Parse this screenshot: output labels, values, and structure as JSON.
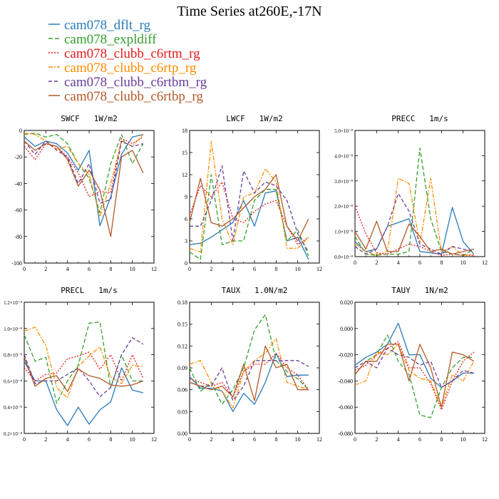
{
  "title": "Time Series at260E,-17N",
  "legend": [
    {
      "name": "cam078_dflt_rg",
      "color": "#2a7ab8",
      "dash": ""
    },
    {
      "name": "cam078_expldiff",
      "color": "#33a02c",
      "dash": "6 3"
    },
    {
      "name": "cam078_clubb_c6rtm_rg",
      "color": "#e31a1c",
      "dash": "2 2"
    },
    {
      "name": "cam078_clubb_c6rtp_rg",
      "color": "#ff8c00",
      "dash": "6 2 2 2"
    },
    {
      "name": "cam078_clubb_c6rtbm_rg",
      "color": "#6a3d9a",
      "dash": "5 3"
    },
    {
      "name": "cam078_clubb_c6rtbp_rg",
      "color": "#b15928",
      "dash": ""
    }
  ],
  "chart_data": [
    {
      "type": "line",
      "title": "SWCF   1W/m2",
      "x": [
        0,
        1,
        2,
        3,
        4,
        5,
        6,
        7,
        8,
        9,
        10,
        11
      ],
      "xlim": [
        0,
        12
      ],
      "ylim": [
        -100,
        0
      ],
      "xticks": [
        0,
        2,
        4,
        6,
        8,
        10,
        12
      ],
      "yticks": [
        -100,
        -80,
        -60,
        -40,
        -20,
        0
      ],
      "yticklabels": [
        "-100",
        "-80",
        "-60",
        "-40",
        "-20",
        "0"
      ],
      "series": [
        {
          "name": "cam078_dflt_rg",
          "values": [
            -5,
            -12,
            -8,
            -10,
            -17,
            -30,
            -15,
            -72,
            -50,
            -18,
            -5,
            -3
          ]
        },
        {
          "name": "cam078_expldiff",
          "values": [
            -3,
            -2,
            -5,
            -3,
            -10,
            -25,
            -36,
            -62,
            -25,
            -3,
            -25,
            -10
          ]
        },
        {
          "name": "cam078_clubb_c6rtm_rg",
          "values": [
            -12,
            -22,
            -10,
            -12,
            -20,
            -32,
            -50,
            -46,
            -47,
            -6,
            -10,
            -5
          ]
        },
        {
          "name": "cam078_clubb_c6rtp_rg",
          "values": [
            -2,
            -3,
            -8,
            -14,
            -12,
            -25,
            -33,
            -65,
            -40,
            -8,
            -12,
            -3
          ]
        },
        {
          "name": "cam078_clubb_c6rtbm_rg",
          "values": [
            -8,
            -18,
            -8,
            -15,
            -20,
            -40,
            -25,
            -55,
            -52,
            -8,
            -12,
            -10
          ]
        },
        {
          "name": "cam078_clubb_c6rtbp_rg",
          "values": [
            -8,
            -15,
            -10,
            -12,
            -22,
            -42,
            -30,
            -45,
            -80,
            -20,
            -15,
            -32
          ]
        }
      ]
    },
    {
      "type": "line",
      "title": "LWCF   1W/m2",
      "x": [
        0,
        1,
        2,
        3,
        4,
        5,
        6,
        7,
        8,
        9,
        10,
        11
      ],
      "xlim": [
        0,
        12
      ],
      "ylim": [
        0,
        18
      ],
      "xticks": [
        0,
        2,
        4,
        6,
        8,
        10,
        12
      ],
      "yticks": [
        0,
        3,
        6,
        9,
        12,
        15,
        18
      ],
      "yticklabels": [
        "0",
        "3",
        "6",
        "9",
        "12",
        "15",
        "18"
      ],
      "series": [
        {
          "name": "cam078_dflt_rg",
          "values": [
            2.5,
            2.7,
            3.5,
            4.5,
            5.5,
            8.5,
            5,
            9.5,
            9.8,
            3,
            3.5,
            0.5
          ]
        },
        {
          "name": "cam078_expldiff",
          "values": [
            1.5,
            0.5,
            12,
            2.5,
            3,
            3,
            8.5,
            10,
            10,
            3,
            4.5,
            1
          ]
        },
        {
          "name": "cam078_clubb_c6rtm_rg",
          "values": [
            6.5,
            10.5,
            9,
            11,
            6,
            5.5,
            7,
            8,
            8.5,
            5,
            2.5,
            3.5
          ]
        },
        {
          "name": "cam078_clubb_c6rtp_rg",
          "values": [
            2,
            1.5,
            16.5,
            6,
            2.5,
            9,
            9.5,
            12.8,
            11,
            2,
            2,
            3.5
          ]
        },
        {
          "name": "cam078_clubb_c6rtbm_rg",
          "values": [
            5,
            5,
            8.5,
            13.2,
            3,
            12.5,
            9.5,
            11,
            10.5,
            8.5,
            4,
            1.5
          ]
        },
        {
          "name": "cam078_clubb_c6rtbp_rg",
          "values": [
            5.5,
            11.5,
            5.5,
            5,
            6,
            7.5,
            9,
            10,
            12,
            5,
            3,
            6
          ]
        }
      ]
    },
    {
      "type": "line",
      "title": "PRECC   1m/s",
      "x": [
        0,
        1,
        2,
        3,
        4,
        5,
        6,
        7,
        8,
        9,
        10,
        11
      ],
      "xlim": [
        0,
        12
      ],
      "ylim": [
        0,
        5e-08
      ],
      "xticks": [
        0,
        2,
        4,
        6,
        8,
        10,
        12
      ],
      "yticks": [
        0,
        1e-08,
        2e-08,
        3e-08,
        4e-08,
        5e-08
      ],
      "yticklabels": [
        "0.0×10⁻⁸",
        "1.0×10⁻⁸",
        "2.0×10⁻⁸",
        "3.0×10⁻⁸",
        "4.0×10⁻⁸",
        "5.0×10⁻⁸"
      ],
      "series": [
        {
          "name": "cam078_dflt_rg",
          "values": [
            6e-09,
            2e-09,
            3e-09,
            1.2e-08,
            1.35e-08,
            1.5e-08,
            2e-09,
            1.5e-09,
            1e-09,
            1.95e-08,
            6e-09,
            1e-09
          ]
        },
        {
          "name": "cam078_expldiff",
          "values": [
            8e-09,
            1e-09,
            5e-10,
            1e-09,
            1e-09,
            2e-09,
            4.3e-08,
            1.5e-08,
            2e-09,
            1e-09,
            5e-10,
            3e-09
          ]
        },
        {
          "name": "cam078_clubb_c6rtm_rg",
          "values": [
            2e-08,
            9e-09,
            1.5e-09,
            1e-09,
            3e-09,
            5e-09,
            4e-09,
            2e-09,
            5e-10,
            1e-09,
            5e-10,
            5e-10
          ]
        },
        {
          "name": "cam078_clubb_c6rtp_rg",
          "values": [
            5e-09,
            2e-09,
            5e-10,
            2e-09,
            3.1e-08,
            2.9e-08,
            5e-09,
            3.1e-08,
            2e-09,
            4e-09,
            5e-10,
            1e-09
          ]
        },
        {
          "name": "cam078_clubb_c6rtbm_rg",
          "values": [
            4e-09,
            1e-09,
            3e-09,
            1.2e-08,
            2.5e-08,
            1.8e-08,
            5e-09,
            3e-09,
            1e-09,
            4e-09,
            3e-09,
            2e-09
          ]
        },
        {
          "name": "cam078_clubb_c6rtbp_rg",
          "values": [
            1e-08,
            3e-09,
            1.4e-08,
            2e-09,
            2e-09,
            1.3e-08,
            8e-09,
            2e-09,
            3e-09,
            1e-09,
            2e-09,
            3e-09
          ]
        }
      ]
    },
    {
      "type": "line",
      "title": "PRECL   1m/s",
      "x": [
        0,
        1,
        2,
        3,
        4,
        5,
        6,
        7,
        8,
        9,
        10,
        11
      ],
      "xlim": [
        0,
        12
      ],
      "ylim": [
        2e-09,
        1.2e-08
      ],
      "xticks": [
        0,
        2,
        4,
        6,
        8,
        10,
        12
      ],
      "yticks": [
        2e-09,
        4e-09,
        6e-09,
        8e-09,
        1e-08,
        1.2e-08
      ],
      "yticklabels": [
        "0.2×10⁻⁸",
        "0.4×10⁻⁸",
        "0.6×10⁻⁸",
        "0.8×10⁻⁸",
        "1.0×10⁻⁸",
        "1.2×10⁻⁸"
      ],
      "series": [
        {
          "name": "cam078_dflt_rg",
          "values": [
            7.5e-09,
            6e-09,
            6e-09,
            3.8e-09,
            2.6e-09,
            4e-09,
            2.7e-09,
            3.8e-09,
            4.4e-09,
            7e-09,
            5.3e-09,
            5.1e-09
          ]
        },
        {
          "name": "cam078_expldiff",
          "values": [
            9.5e-09,
            7.5e-09,
            7.8e-09,
            4.3e-09,
            6e-09,
            7.2e-09,
            1.04e-08,
            1.05e-08,
            5.5e-09,
            8e-09,
            6e-09,
            6e-09
          ]
        },
        {
          "name": "cam078_clubb_c6rtm_rg",
          "values": [
            7e-09,
            6e-09,
            6.5e-09,
            6.6e-09,
            7.7e-09,
            7.9e-09,
            8.2e-09,
            6.9e-09,
            8e-09,
            6e-09,
            8e-09,
            6.2e-09
          ]
        },
        {
          "name": "cam078_clubb_c6rtp_rg",
          "values": [
            9.8e-09,
            1.01e-08,
            8.7e-09,
            5.5e-09,
            4.7e-09,
            7.1e-09,
            7.9e-09,
            8.6e-09,
            6.3e-09,
            5.8e-09,
            7.2e-09,
            7.1e-09
          ]
        },
        {
          "name": "cam078_clubb_c6rtbm_rg",
          "values": [
            8e-09,
            5.8e-09,
            6e-09,
            6e-09,
            6.5e-09,
            7e-09,
            6e-09,
            4.8e-09,
            5.5e-09,
            8e-09,
            9.3e-09,
            8.8e-09
          ]
        },
        {
          "name": "cam078_clubb_c6rtbp_rg",
          "values": [
            7.8e-09,
            5.6e-09,
            6.2e-09,
            6.4e-09,
            5.2e-09,
            6.9e-09,
            6.4e-09,
            6.2e-09,
            5.7e-09,
            5.6e-09,
            5.7e-09,
            6e-09
          ]
        }
      ]
    },
    {
      "type": "line",
      "title": "TAUX   1.0N/m2",
      "x": [
        0,
        1,
        2,
        3,
        4,
        5,
        6,
        7,
        8,
        9,
        10,
        11
      ],
      "xlim": [
        0,
        12
      ],
      "ylim": [
        0,
        0.18
      ],
      "xticks": [
        0,
        2,
        4,
        6,
        8,
        10,
        12
      ],
      "yticks": [
        0,
        0.03,
        0.06,
        0.09,
        0.12,
        0.15,
        0.18
      ],
      "yticklabels": [
        "0.00",
        "0.03",
        "0.06",
        "0.09",
        "0.12",
        "0.15",
        "0.18"
      ],
      "series": [
        {
          "name": "cam078_dflt_rg",
          "values": [
            0.078,
            0.062,
            0.062,
            0.058,
            0.03,
            0.055,
            0.04,
            0.07,
            0.11,
            0.078,
            0.08,
            0.08
          ]
        },
        {
          "name": "cam078_expldiff",
          "values": [
            0.09,
            0.058,
            0.07,
            0.04,
            0.06,
            0.09,
            0.142,
            0.163,
            0.1,
            0.085,
            0.075,
            0.06
          ]
        },
        {
          "name": "cam078_clubb_c6rtm_rg",
          "values": [
            0.075,
            0.07,
            0.065,
            0.07,
            0.05,
            0.085,
            0.095,
            0.095,
            0.11,
            0.09,
            0.08,
            0.06
          ]
        },
        {
          "name": "cam078_clubb_c6rtp_rg",
          "values": [
            0.095,
            0.1,
            0.07,
            0.058,
            0.035,
            0.085,
            0.1,
            0.11,
            0.13,
            0.07,
            0.065,
            0.06
          ]
        },
        {
          "name": "cam078_clubb_c6rtbm_rg",
          "values": [
            0.07,
            0.065,
            0.065,
            0.09,
            0.045,
            0.065,
            0.1,
            0.1,
            0.1,
            0.1,
            0.1,
            0.092
          ]
        },
        {
          "name": "cam078_clubb_c6rtbp_rg",
          "values": [
            0.07,
            0.065,
            0.06,
            0.065,
            0.05,
            0.095,
            0.045,
            0.12,
            0.09,
            0.095,
            0.06,
            0.06
          ]
        }
      ]
    },
    {
      "type": "line",
      "title": "TAUY   1N/m2",
      "x": [
        0,
        1,
        2,
        3,
        4,
        5,
        6,
        7,
        8,
        9,
        10,
        11
      ],
      "xlim": [
        0,
        12
      ],
      "ylim": [
        -0.08,
        0.02
      ],
      "xticks": [
        0,
        2,
        4,
        6,
        8,
        10,
        12
      ],
      "yticks": [
        -0.08,
        -0.06,
        -0.04,
        -0.02,
        0,
        0.02
      ],
      "yticklabels": [
        "-0.080",
        "-0.060",
        "-0.040",
        "-0.020",
        "0.000",
        "0.020"
      ],
      "series": [
        {
          "name": "cam078_dflt_rg",
          "values": [
            -0.028,
            -0.022,
            -0.018,
            -0.012,
            0.004,
            -0.02,
            -0.02,
            -0.038,
            -0.045,
            -0.04,
            -0.034,
            -0.034
          ]
        },
        {
          "name": "cam078_expldiff",
          "values": [
            -0.035,
            -0.025,
            -0.02,
            -0.005,
            -0.025,
            -0.035,
            -0.066,
            -0.068,
            -0.045,
            -0.03,
            -0.022,
            -0.022
          ]
        },
        {
          "name": "cam078_clubb_c6rtm_rg",
          "values": [
            -0.032,
            -0.028,
            -0.02,
            -0.015,
            -0.01,
            -0.03,
            -0.03,
            -0.042,
            -0.062,
            -0.04,
            -0.025,
            -0.018
          ]
        },
        {
          "name": "cam078_clubb_c6rtp_rg",
          "values": [
            -0.043,
            -0.04,
            -0.018,
            -0.02,
            -0.012,
            -0.032,
            -0.038,
            -0.04,
            -0.06,
            -0.035,
            -0.04,
            -0.025
          ]
        },
        {
          "name": "cam078_clubb_c6rtbm_rg",
          "values": [
            -0.03,
            -0.025,
            -0.03,
            -0.015,
            -0.02,
            -0.022,
            -0.028,
            -0.025,
            -0.045,
            -0.04,
            -0.032,
            -0.034
          ]
        },
        {
          "name": "cam078_clubb_c6rtbp_rg",
          "values": [
            -0.035,
            -0.025,
            -0.025,
            -0.012,
            -0.012,
            -0.04,
            -0.012,
            -0.03,
            -0.06,
            -0.018,
            -0.02,
            -0.025
          ]
        }
      ]
    }
  ]
}
